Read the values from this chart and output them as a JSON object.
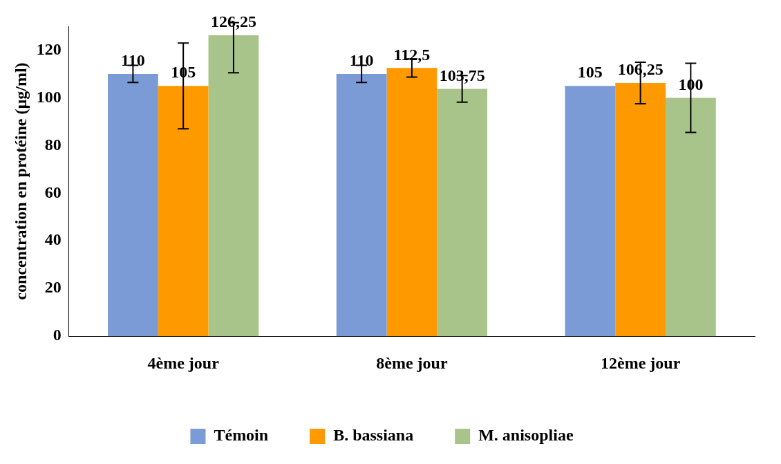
{
  "chart_data": {
    "type": "bar",
    "ylabel": "concentration en protéine (µg/ml)",
    "categories": [
      "4ème jour",
      "8ème jour",
      "12ème jour"
    ],
    "series": [
      {
        "name": "Témoin",
        "color": "#7b9bd6",
        "values": [
          110,
          110,
          105
        ],
        "value_labels": [
          "110",
          "110",
          "105"
        ],
        "errors": [
          3.6,
          3.6,
          null
        ]
      },
      {
        "name": "B. bassiana",
        "color": "#ff9900",
        "values": [
          105,
          112.5,
          106.25
        ],
        "value_labels": [
          "105",
          "112,5",
          "106,25"
        ],
        "errors": [
          18,
          3.8,
          8.7
        ]
      },
      {
        "name": "M. anisopliae",
        "color": "#a9c48a",
        "values": [
          126.25,
          103.75,
          100
        ],
        "value_labels": [
          "126,25",
          "103,75",
          "100"
        ],
        "errors": [
          [
            110.5,
            131.5
          ],
          5.6,
          14.5
        ]
      }
    ],
    "ylim": [
      0,
      130
    ],
    "yticks": [
      0,
      20,
      40,
      60,
      80,
      100,
      120
    ],
    "grid": false,
    "legend": "bottom"
  }
}
